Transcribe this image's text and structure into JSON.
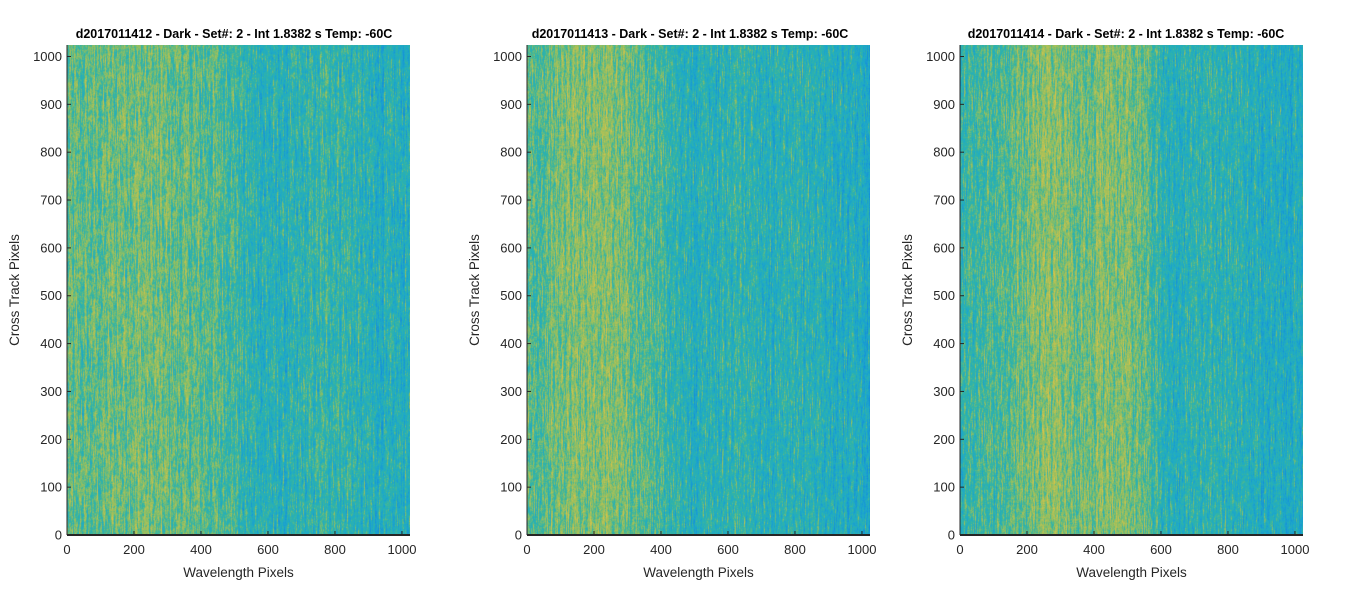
{
  "chart_data": [
    {
      "type": "heatmap",
      "title": "d2017011412 - Dark - Set#: 2 - Int 1.8382 s Temp: -60C",
      "xlabel": "Wavelength Pixels",
      "ylabel": "Cross Track Pixels",
      "xlim": [
        0,
        1024
      ],
      "ylim": [
        0,
        1024
      ],
      "xticks": [
        0,
        200,
        400,
        600,
        800,
        1000
      ],
      "yticks": [
        0,
        100,
        200,
        300,
        400,
        500,
        600,
        700,
        800,
        900,
        1000
      ],
      "grid": false,
      "colormap": "parula",
      "column_profile": {
        "x": [
          0,
          100,
          150,
          200,
          250,
          300,
          350,
          400,
          450,
          500,
          520,
          550,
          600,
          650,
          700,
          750,
          800,
          850,
          900,
          950,
          1024
        ],
        "level": [
          0.58,
          0.6,
          0.64,
          0.66,
          0.64,
          0.62,
          0.6,
          0.58,
          0.56,
          0.53,
          0.45,
          0.42,
          0.4,
          0.38,
          0.42,
          0.46,
          0.48,
          0.44,
          0.38,
          0.36,
          0.38
        ]
      }
    },
    {
      "type": "heatmap",
      "title": "d2017011413 - Dark - Set#: 2 - Int 1.8382 s Temp: -60C",
      "xlabel": "Wavelength Pixels",
      "ylabel": "Cross Track Pixels",
      "xlim": [
        0,
        1024
      ],
      "ylim": [
        0,
        1024
      ],
      "xticks": [
        0,
        200,
        400,
        600,
        800,
        1000
      ],
      "yticks": [
        0,
        100,
        200,
        300,
        400,
        500,
        600,
        700,
        800,
        900,
        1000
      ],
      "grid": false,
      "colormap": "parula",
      "column_profile": {
        "x": [
          0,
          50,
          100,
          150,
          200,
          250,
          300,
          350,
          400,
          450,
          500,
          550,
          600,
          650,
          700,
          750,
          800,
          850,
          900,
          950,
          1024
        ],
        "level": [
          0.55,
          0.6,
          0.66,
          0.7,
          0.72,
          0.7,
          0.64,
          0.58,
          0.5,
          0.42,
          0.38,
          0.4,
          0.44,
          0.46,
          0.42,
          0.38,
          0.4,
          0.42,
          0.38,
          0.34,
          0.32
        ]
      }
    },
    {
      "type": "heatmap",
      "title": "d2017011414 - Dark - Set#: 2 - Int 1.8382 s Temp: -60C",
      "xlabel": "Wavelength Pixels",
      "ylabel": "Cross Track Pixels",
      "xlim": [
        0,
        1024
      ],
      "ylim": [
        0,
        1024
      ],
      "xticks": [
        0,
        200,
        400,
        600,
        800,
        1000
      ],
      "yticks": [
        0,
        100,
        200,
        300,
        400,
        500,
        600,
        700,
        800,
        900,
        1000
      ],
      "grid": false,
      "colormap": "parula",
      "column_profile": {
        "x": [
          0,
          50,
          100,
          150,
          200,
          250,
          300,
          350,
          400,
          450,
          500,
          550,
          600,
          650,
          700,
          750,
          800,
          850,
          900,
          950,
          1024
        ],
        "level": [
          0.48,
          0.5,
          0.54,
          0.6,
          0.66,
          0.7,
          0.68,
          0.64,
          0.66,
          0.7,
          0.68,
          0.6,
          0.46,
          0.4,
          0.42,
          0.44,
          0.42,
          0.38,
          0.36,
          0.35,
          0.36
        ]
      }
    }
  ]
}
